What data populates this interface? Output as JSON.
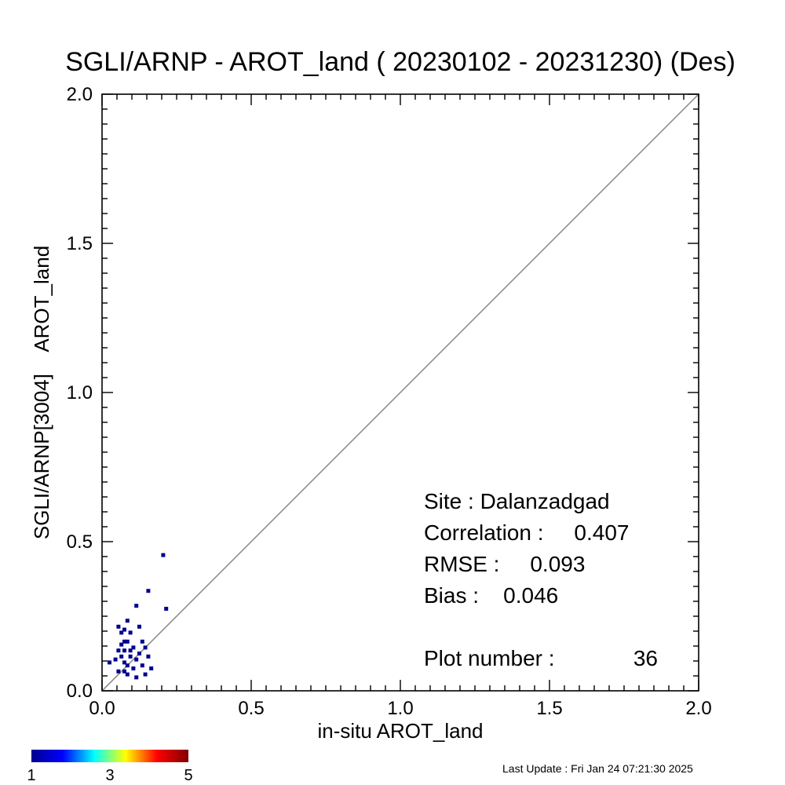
{
  "chart_data": {
    "type": "scatter",
    "title": "SGLI/ARNP - AROT_land ( 20230102 - 20231230) (Des)",
    "xlabel": "in-situ AROT_land",
    "ylabel": "SGLI/ARNP[3004]    AROT_land",
    "xlim": [
      0.0,
      2.0
    ],
    "ylim": [
      0.0,
      2.0
    ],
    "xticks": [
      "0.0",
      "0.5",
      "1.0",
      "1.5",
      "2.0"
    ],
    "yticks": [
      "0.0",
      "0.5",
      "1.0",
      "1.5",
      "2.0"
    ],
    "reference_line": "1:1",
    "points": [
      [
        0.205,
        0.455
      ],
      [
        0.155,
        0.335
      ],
      [
        0.215,
        0.275
      ],
      [
        0.115,
        0.285
      ],
      [
        0.085,
        0.235
      ],
      [
        0.055,
        0.215
      ],
      [
        0.075,
        0.205
      ],
      [
        0.125,
        0.215
      ],
      [
        0.065,
        0.195
      ],
      [
        0.095,
        0.195
      ],
      [
        0.075,
        0.165
      ],
      [
        0.085,
        0.165
      ],
      [
        0.135,
        0.165
      ],
      [
        0.145,
        0.145
      ],
      [
        0.105,
        0.145
      ],
      [
        0.055,
        0.135
      ],
      [
        0.075,
        0.135
      ],
      [
        0.125,
        0.125
      ],
      [
        0.155,
        0.115
      ],
      [
        0.065,
        0.115
      ],
      [
        0.095,
        0.115
      ],
      [
        0.045,
        0.105
      ],
      [
        0.115,
        0.105
      ],
      [
        0.025,
        0.095
      ],
      [
        0.075,
        0.095
      ],
      [
        0.085,
        0.085
      ],
      [
        0.135,
        0.085
      ],
      [
        0.165,
        0.075
      ],
      [
        0.105,
        0.075
      ],
      [
        0.055,
        0.065
      ],
      [
        0.075,
        0.065
      ],
      [
        0.085,
        0.055
      ],
      [
        0.145,
        0.055
      ],
      [
        0.115,
        0.045
      ],
      [
        0.065,
        0.155
      ],
      [
        0.095,
        0.135
      ]
    ],
    "point_color": "#00008f",
    "line_color": "#909090",
    "colorbar": {
      "min_label": "1",
      "mid_label": "3",
      "max_label": "5",
      "colors": [
        "#00008f",
        "#0000ff",
        "#00ffff",
        "#ffff00",
        "#ff0000",
        "#800000"
      ]
    },
    "annotations": {
      "site": "Site : Dalanzadgad",
      "correlation": "Correlation :     0.407",
      "rmse": "RMSE :     0.093",
      "bias": "Bias :    0.046",
      "plot_number": "Plot number :",
      "plot_number_value": "36"
    }
  },
  "footer": {
    "last_update": "Last Update : Fri Jan 24 07:21:30 2025"
  }
}
